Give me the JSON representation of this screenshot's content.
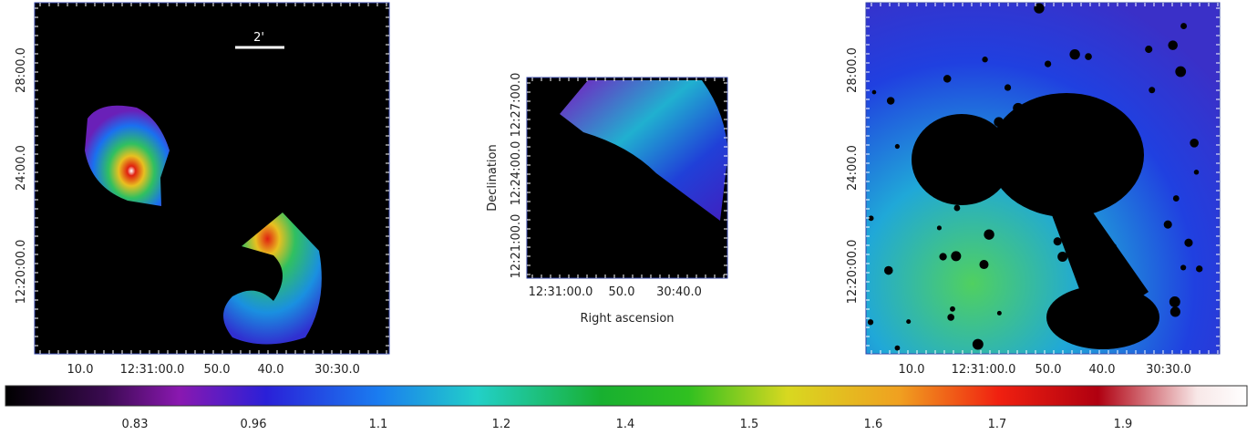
{
  "panels": [
    {
      "y_tick_labels": [
        "28:00.0",
        "24:00.0",
        "12:20:00.0"
      ],
      "x_tick_labels": [
        "10.0",
        "12:31:00.0",
        "50.0",
        "40.0",
        "30:30.0"
      ],
      "scale_bar_label": "2'"
    },
    {
      "y_tick_labels": [
        "12:21:00.0",
        "12:24:00.0",
        "12:27:00.0"
      ],
      "x_tick_labels": [
        "12:31:00.0",
        "50.0",
        "30:40.0"
      ],
      "x_axis_label": "Right ascension",
      "y_axis_label": "Declination"
    },
    {
      "y_tick_labels": [
        "28:00.0",
        "24:00.0",
        "12:20:00.0"
      ],
      "x_tick_labels": [
        "10.0",
        "12:31:00.0",
        "50.0",
        "40.0",
        "30:30.0"
      ]
    }
  ],
  "colorbar": {
    "tick_labels": [
      "0.83",
      "0.96",
      "1.1",
      "1.2",
      "1.4",
      "1.5",
      "1.6",
      "1.7",
      "1.9"
    ]
  }
}
